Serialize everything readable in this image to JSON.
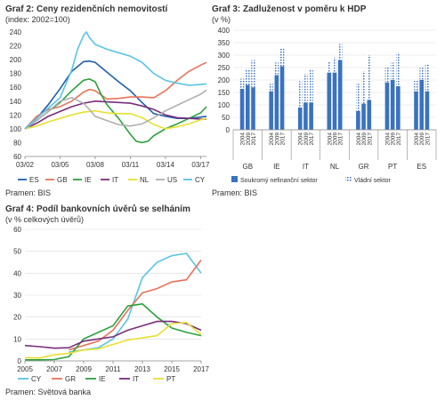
{
  "colors": {
    "ES": "#1f5faa",
    "GB": "#e8735a",
    "IE": "#2da13e",
    "IT": "#7b2d7b",
    "NL": "#e8e030",
    "US": "#b0b0b0",
    "CY": "#58c4e8",
    "GR": "#e8735a",
    "PT": "#e8e030",
    "bar_solid": "#3a72c0",
    "bar_pattern": "#3a72c0",
    "grid": "#d9d9d9",
    "axis": "#888888"
  },
  "chart_data": [
    {
      "id": "graf2",
      "type": "line",
      "title": "Graf 2: Ceny rezidenčních nemovitostí",
      "subtitle": "(index: 2002=100)",
      "source": "Pramen: BIS",
      "ylim": [
        60,
        240
      ],
      "yticks": [
        60,
        80,
        100,
        120,
        140,
        160,
        180,
        200,
        220,
        240
      ],
      "xlim": [
        0,
        62
      ],
      "xticks": [
        {
          "x": 0,
          "label": "03/02"
        },
        {
          "x": 12,
          "label": "03/05"
        },
        {
          "x": 24,
          "label": "03/08"
        },
        {
          "x": 36,
          "label": "03/11"
        },
        {
          "x": 48,
          "label": "03/14"
        },
        {
          "x": 60,
          "label": "03/17"
        }
      ],
      "legend": [
        "ES",
        "GB",
        "IE",
        "IT",
        "NL",
        "US",
        "CY"
      ],
      "series": [
        {
          "name": "ES",
          "x": [
            0,
            4,
            8,
            12,
            16,
            20,
            22,
            24,
            28,
            32,
            36,
            40,
            44,
            48,
            52,
            56,
            60,
            62
          ],
          "values": [
            100,
            115,
            135,
            158,
            183,
            197,
            198,
            196,
            182,
            168,
            155,
            138,
            122,
            118,
            115,
            115,
            117,
            118
          ]
        },
        {
          "name": "GB",
          "x": [
            0,
            4,
            8,
            12,
            16,
            20,
            22,
            24,
            28,
            32,
            36,
            40,
            44,
            48,
            52,
            56,
            60,
            62
          ],
          "values": [
            100,
            118,
            128,
            132,
            140,
            153,
            157,
            155,
            143,
            144,
            146,
            146,
            145,
            155,
            170,
            183,
            192,
            196
          ]
        },
        {
          "name": "IE",
          "x": [
            0,
            4,
            8,
            12,
            16,
            20,
            22,
            24,
            26,
            28,
            32,
            36,
            38,
            40,
            42,
            44,
            48,
            52,
            56,
            60,
            62
          ],
          "values": [
            100,
            112,
            125,
            138,
            155,
            170,
            172,
            168,
            150,
            135,
            115,
            92,
            82,
            80,
            82,
            90,
            100,
            107,
            115,
            123,
            132
          ]
        },
        {
          "name": "IT",
          "x": [
            0,
            4,
            8,
            12,
            16,
            20,
            24,
            28,
            32,
            36,
            40,
            44,
            48,
            52,
            56,
            60,
            62
          ],
          "values": [
            100,
            108,
            118,
            125,
            132,
            137,
            140,
            139,
            138,
            137,
            133,
            128,
            120,
            116,
            115,
            114,
            114
          ]
        },
        {
          "name": "NL",
          "x": [
            0,
            4,
            8,
            12,
            16,
            20,
            24,
            28,
            32,
            36,
            40,
            44,
            48,
            52,
            56,
            60,
            62
          ],
          "values": [
            100,
            104,
            110,
            115,
            120,
            124,
            126,
            123,
            122,
            122,
            116,
            106,
            100,
            103,
            107,
            113,
            115
          ]
        },
        {
          "name": "US",
          "x": [
            0,
            4,
            8,
            12,
            16,
            20,
            22,
            24,
            28,
            32,
            36,
            40,
            44,
            48,
            52,
            56,
            60,
            62
          ],
          "values": [
            100,
            112,
            125,
            140,
            145,
            137,
            128,
            118,
            112,
            106,
            104,
            107,
            116,
            126,
            134,
            142,
            150,
            156
          ]
        },
        {
          "name": "CY",
          "x": [
            0,
            4,
            8,
            12,
            16,
            18,
            20,
            21,
            22,
            24,
            28,
            32,
            36,
            40,
            44,
            48,
            52,
            56,
            60,
            62
          ],
          "values": [
            100,
            115,
            130,
            145,
            185,
            215,
            235,
            240,
            232,
            222,
            215,
            210,
            205,
            196,
            180,
            170,
            166,
            163,
            164,
            165
          ]
        }
      ]
    },
    {
      "id": "graf3",
      "type": "bar",
      "title": "Graf 3: Zadluženost v poměru k HDP",
      "subtitle": "(v %)",
      "source": "Pramen: BIS",
      "ylim": [
        0,
        400
      ],
      "yticks": [
        0,
        50,
        100,
        150,
        200,
        250,
        300,
        350,
        400
      ],
      "year_labels": [
        "2004",
        "2009",
        "2017"
      ],
      "countries": [
        "GB",
        "IE",
        "IT",
        "NL",
        "GR",
        "PT",
        "ES"
      ],
      "legend": [
        "Soukromý nefinanční sektor",
        "Vládní sektor"
      ],
      "private": [
        [
          165,
          180,
          170
        ],
        [
          155,
          220,
          255
        ],
        [
          90,
          110,
          110
        ],
        [
          230,
          230,
          280
        ],
        [
          75,
          105,
          120
        ],
        [
          190,
          200,
          175
        ],
        [
          155,
          200,
          155
        ]
      ],
      "government": [
        [
          40,
          65,
          110
        ],
        [
          30,
          50,
          75
        ],
        [
          105,
          115,
          135
        ],
        [
          45,
          60,
          65
        ],
        [
          110,
          130,
          180
        ],
        [
          60,
          70,
          135
        ],
        [
          45,
          55,
          110
        ]
      ]
    },
    {
      "id": "graf4",
      "type": "line",
      "title": "Graf 4: Podíl bankovních úvěrů se selháním",
      "subtitle": "(v % celkových úvěrů)",
      "source": "Pramen: Světová banka",
      "ylim": [
        0,
        60
      ],
      "yticks": [
        0,
        10,
        20,
        30,
        40,
        50,
        60
      ],
      "xlim": [
        2005,
        2017
      ],
      "xticks": [
        2005,
        2007,
        2009,
        2011,
        2013,
        2015,
        2017
      ],
      "legend": [
        "CY",
        "GR",
        "IE",
        "IT",
        "PT"
      ],
      "series": [
        {
          "name": "CY",
          "x": [
            2008,
            2009,
            2010,
            2011,
            2012,
            2013,
            2014,
            2015,
            2016,
            2017
          ],
          "values": [
            4,
            5,
            6,
            10,
            19,
            38,
            45,
            48,
            49,
            40
          ]
        },
        {
          "name": "GR",
          "x": [
            2008,
            2009,
            2010,
            2011,
            2012,
            2013,
            2014,
            2015,
            2016,
            2017
          ],
          "values": [
            5,
            7,
            9,
            14,
            23,
            31,
            33,
            36,
            37,
            46
          ]
        },
        {
          "name": "IE",
          "x": [
            2005,
            2006,
            2007,
            2008,
            2009,
            2010,
            2011,
            2012,
            2013,
            2014,
            2015,
            2016,
            2017
          ],
          "values": [
            0.5,
            0.5,
            0.6,
            2,
            10,
            13,
            16,
            25,
            26,
            20,
            15,
            13,
            11.5
          ]
        },
        {
          "name": "IT",
          "x": [
            2005,
            2006,
            2007,
            2008,
            2009,
            2010,
            2011,
            2012,
            2013,
            2014,
            2015,
            2016,
            2017
          ],
          "values": [
            7,
            6.5,
            5.8,
            6,
            9,
            10,
            11,
            14,
            16,
            18,
            18,
            17,
            14
          ]
        },
        {
          "name": "PT",
          "x": [
            2005,
            2006,
            2007,
            2008,
            2009,
            2010,
            2011,
            2012,
            2013,
            2014,
            2015,
            2016,
            2017
          ],
          "values": [
            1.5,
            1.3,
            2.8,
            3.5,
            5,
            5.5,
            7.5,
            9.5,
            10.5,
            11.5,
            17,
            17.5,
            12
          ]
        }
      ]
    }
  ]
}
